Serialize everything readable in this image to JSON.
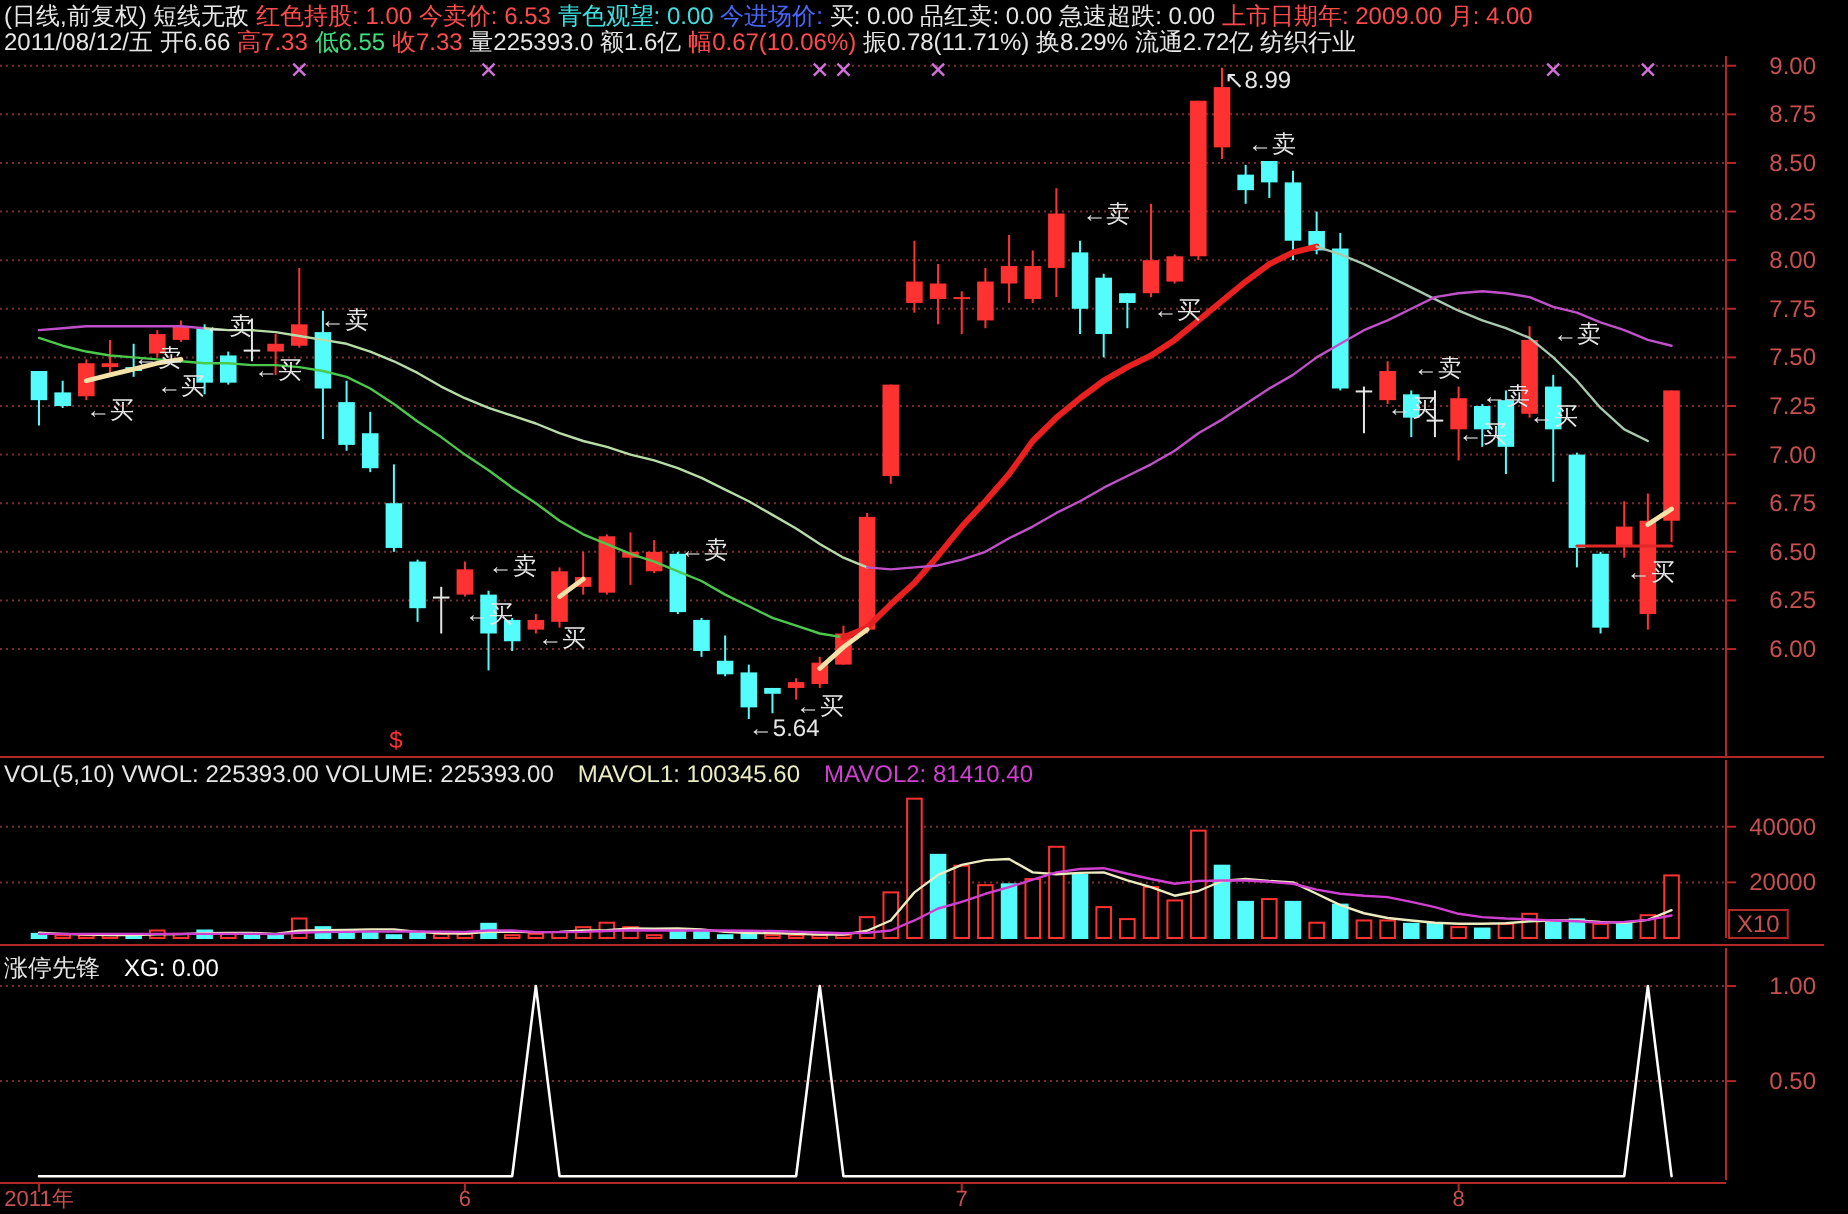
{
  "chart_data": [
    {
      "type": "candlestick",
      "title": "(日线,前复权) 短线无敌 红色持股: 1.00 今卖价: 6.53 青色观望: 0.00 今进场价: 买: 0.00 品红卖: 0.00 急速超跌: 0.00 上市日期年: 2009.00 月: 4.00",
      "subtitle": "2011/08/12/五 开6.66 高7.33 低6.55 收7.33 量225393.0 额1.6亿 幅0.67(10.06%) 振0.78(11.71%) 换8.29% 流通2.72亿 纺织行业",
      "categories": [
        null,
        null,
        null,
        null,
        null,
        null,
        null,
        null,
        null,
        null,
        null,
        null,
        null,
        null,
        null,
        null,
        null,
        null,
        null,
        null,
        null,
        null,
        null,
        null,
        null,
        null,
        null,
        null,
        null,
        null,
        null,
        null,
        null,
        null,
        null,
        null,
        null,
        null,
        null,
        null,
        null,
        null,
        null,
        null,
        null,
        null,
        null,
        null,
        null,
        null,
        null,
        null,
        null,
        null,
        null,
        null,
        null,
        null,
        null,
        null,
        null,
        null,
        null,
        null,
        null,
        null,
        null,
        null,
        null,
        null
      ],
      "tick_labels": "y",
      "ylim": [
        5.45,
        9.05
      ],
      "yticks": [
        {
          "value": 6,
          "label": "6.00"
        },
        {
          "value": 6.25,
          "label": "6.25"
        },
        {
          "value": 6.5,
          "label": "6.50"
        },
        {
          "value": 6.75,
          "label": "6.75"
        },
        {
          "value": 7,
          "label": "7.00"
        },
        {
          "value": 7.25,
          "label": "7.25"
        },
        {
          "value": 7.5,
          "label": "7.50"
        },
        {
          "value": 7.75,
          "label": "7.75"
        },
        {
          "value": 8,
          "label": "8.00"
        },
        {
          "value": 8.25,
          "label": "8.25"
        },
        {
          "value": 8.5,
          "label": "8.50"
        },
        {
          "value": 8.75,
          "label": "8.75"
        },
        {
          "value": 9,
          "label": "9.00"
        }
      ],
      "grid": "y",
      "ohlc": [
        [
          7.43,
          7.43,
          7.15,
          7.28
        ],
        [
          7.32,
          7.38,
          7.24,
          7.25
        ],
        [
          7.3,
          7.49,
          7.28,
          7.47
        ],
        [
          7.45,
          7.59,
          7.41,
          7.47
        ],
        [
          7.45,
          7.57,
          7.4,
          7.43
        ],
        [
          7.52,
          7.64,
          7.5,
          7.62
        ],
        [
          7.59,
          7.69,
          7.58,
          7.66
        ],
        [
          7.65,
          7.67,
          7.31,
          7.37
        ],
        [
          7.51,
          7.53,
          7.36,
          7.37
        ],
        [
          7.53,
          7.7,
          7.48,
          7.54
        ],
        [
          7.53,
          7.62,
          7.41,
          7.57
        ],
        [
          7.56,
          7.96,
          7.55,
          7.67
        ],
        [
          7.63,
          7.74,
          7.08,
          7.34
        ],
        [
          7.27,
          7.38,
          7.02,
          7.05
        ],
        [
          7.11,
          7.22,
          6.91,
          6.93
        ],
        [
          6.75,
          6.95,
          6.5,
          6.52
        ],
        [
          6.45,
          6.46,
          6.14,
          6.21
        ],
        [
          6.26,
          6.32,
          6.08,
          6.27
        ],
        [
          6.28,
          6.45,
          6.27,
          6.41
        ],
        [
          6.28,
          6.3,
          5.89,
          6.08
        ],
        [
          6.15,
          6.16,
          5.99,
          6.04
        ],
        [
          6.1,
          6.18,
          6.08,
          6.15
        ],
        [
          6.14,
          6.42,
          6.11,
          6.4
        ],
        [
          6.32,
          6.5,
          6.28,
          6.37
        ],
        [
          6.29,
          6.59,
          6.28,
          6.58
        ],
        [
          6.47,
          6.6,
          6.33,
          6.5
        ],
        [
          6.4,
          6.56,
          6.39,
          6.5
        ],
        [
          6.49,
          6.5,
          6.18,
          6.19
        ],
        [
          6.15,
          6.16,
          5.96,
          5.99
        ],
        [
          5.94,
          6.07,
          5.86,
          5.87
        ],
        [
          5.88,
          5.92,
          5.64,
          5.7
        ],
        [
          5.8,
          5.8,
          5.67,
          5.77
        ],
        [
          5.8,
          5.85,
          5.74,
          5.83
        ],
        [
          5.82,
          5.96,
          5.8,
          5.93
        ],
        [
          5.92,
          6.12,
          5.92,
          6.08
        ],
        [
          6.1,
          6.7,
          6.08,
          6.68
        ],
        [
          6.89,
          7.36,
          6.85,
          7.36
        ],
        [
          7.78,
          8.1,
          7.73,
          7.89
        ],
        [
          7.8,
          7.98,
          7.67,
          7.88
        ],
        [
          7.8,
          7.84,
          7.62,
          7.81
        ],
        [
          7.69,
          7.96,
          7.65,
          7.89
        ],
        [
          7.88,
          8.13,
          7.78,
          7.97
        ],
        [
          7.8,
          8.05,
          7.78,
          7.97
        ],
        [
          7.96,
          8.37,
          7.81,
          8.24
        ],
        [
          8.04,
          8.1,
          7.62,
          7.75
        ],
        [
          7.91,
          7.93,
          7.5,
          7.62
        ],
        [
          7.83,
          7.83,
          7.65,
          7.78
        ],
        [
          7.83,
          8.29,
          7.81,
          8.0
        ],
        [
          7.89,
          8.03,
          7.88,
          8.02
        ],
        [
          8.02,
          8.82,
          8.0,
          8.82
        ],
        [
          8.58,
          8.99,
          8.52,
          8.89
        ],
        [
          8.44,
          8.49,
          8.29,
          8.36
        ],
        [
          8.51,
          8.51,
          8.32,
          8.4
        ],
        [
          8.4,
          8.46,
          8.0,
          8.1
        ],
        [
          8.15,
          8.25,
          8.03,
          8.05
        ],
        [
          8.06,
          8.14,
          7.33,
          7.34
        ],
        [
          7.33,
          7.35,
          7.11,
          7.33
        ],
        [
          7.28,
          7.48,
          7.26,
          7.43
        ],
        [
          7.31,
          7.33,
          7.09,
          7.19
        ],
        [
          7.17,
          7.33,
          7.09,
          7.18
        ],
        [
          7.13,
          7.35,
          6.97,
          7.29
        ],
        [
          7.25,
          7.26,
          7.04,
          7.13
        ],
        [
          7.28,
          7.33,
          6.9,
          7.04
        ],
        [
          7.21,
          7.66,
          7.19,
          7.59
        ],
        [
          7.35,
          7.41,
          6.86,
          7.13
        ],
        [
          7.0,
          7.01,
          6.42,
          6.52
        ],
        [
          6.49,
          6.5,
          6.08,
          6.11
        ],
        [
          6.53,
          6.76,
          6.47,
          6.63
        ],
        [
          6.18,
          6.8,
          6.1,
          6.66
        ],
        [
          6.66,
          7.33,
          6.55,
          7.33
        ]
      ],
      "colors": [
        "#54fcfc",
        "#54fcfc",
        "#ff3232",
        "#ff3232",
        "#54fcfc",
        "#ff3232",
        "#ff3232",
        "#54fcfc",
        "#54fcfc",
        "#e6e6e6",
        "#ff3232",
        "#ff3232",
        "#54fcfc",
        "#54fcfc",
        "#54fcfc",
        "#54fcfc",
        "#54fcfc",
        "#e6e6e6",
        "#ff3232",
        "#54fcfc",
        "#54fcfc",
        "#ff3232",
        "#ff3232",
        "#ff3232",
        "#ff3232",
        "#ff3232",
        "#ff3232",
        "#54fcfc",
        "#54fcfc",
        "#54fcfc",
        "#54fcfc",
        "#54fcfc",
        "#ff3232",
        "#ff3232",
        "#ff3232",
        "#ff3232",
        "#ff3232",
        "#ff3232",
        "#ff3232",
        "#ff3232",
        "#ff3232",
        "#ff3232",
        "#ff3232",
        "#ff3232",
        "#54fcfc",
        "#54fcfc",
        "#54fcfc",
        "#ff3232",
        "#ff3232",
        "#ff3232",
        "#ff3232",
        "#54fcfc",
        "#54fcfc",
        "#54fcfc",
        "#54fcfc",
        "#54fcfc",
        "#e6e6e6",
        "#ff3232",
        "#54fcfc",
        "#e6e6e6",
        "#ff3232",
        "#54fcfc",
        "#54fcfc",
        "#ff3232",
        "#54fcfc",
        "#54fcfc",
        "#54fcfc",
        "#ff3232",
        "#ff3232",
        "#ff3232"
      ],
      "series": [
        {
          "type": "line",
          "color": "#4cc84c",
          "values": [
            7.6,
            7.56,
            7.53,
            7.51,
            7.5,
            7.49,
            7.48,
            7.47,
            7.47,
            7.46,
            7.46,
            7.45,
            7.43,
            7.4,
            7.34,
            7.26,
            7.17,
            7.09,
            7.0,
            6.92,
            6.83,
            6.75,
            6.66,
            6.59,
            6.54,
            6.49,
            6.45,
            6.4,
            6.35,
            6.28,
            6.22,
            6.16,
            6.12,
            6.08,
            6.06,
            null,
            null,
            null,
            null,
            null,
            null,
            null,
            null,
            null,
            null,
            null,
            null,
            null,
            null,
            null,
            null,
            null,
            null,
            null,
            null,
            null,
            null,
            null,
            null,
            null,
            null,
            null,
            null,
            null,
            null,
            null,
            null,
            null,
            null,
            null
          ]
        },
        {
          "type": "line",
          "color": "#e82020",
          "values": [
            null,
            null,
            null,
            null,
            null,
            null,
            null,
            null,
            null,
            null,
            null,
            null,
            null,
            null,
            null,
            null,
            null,
            null,
            null,
            null,
            null,
            null,
            null,
            null,
            null,
            null,
            null,
            null,
            null,
            null,
            null,
            null,
            null,
            null,
            6.06,
            6.11,
            6.23,
            6.34,
            6.48,
            6.63,
            6.76,
            6.9,
            7.07,
            7.19,
            7.29,
            7.38,
            7.45,
            7.51,
            7.59,
            7.69,
            7.79,
            7.89,
            7.98,
            8.04,
            8.07,
            null,
            null,
            null,
            null,
            null,
            null,
            null,
            null,
            null,
            null,
            null,
            null,
            null,
            null,
            null
          ]
        },
        {
          "type": "line",
          "color": "#a8c8b0",
          "values": [
            null,
            null,
            null,
            null,
            null,
            null,
            null,
            null,
            null,
            null,
            null,
            null,
            null,
            null,
            null,
            null,
            null,
            null,
            null,
            null,
            null,
            null,
            null,
            null,
            null,
            null,
            null,
            null,
            null,
            null,
            null,
            null,
            null,
            null,
            null,
            null,
            null,
            null,
            null,
            null,
            null,
            null,
            null,
            null,
            null,
            null,
            null,
            null,
            null,
            null,
            null,
            null,
            null,
            null,
            8.07,
            8.03,
            7.98,
            7.92,
            7.86,
            7.8,
            7.74,
            7.69,
            7.65,
            7.6,
            7.5,
            7.38,
            7.24,
            7.13,
            7.07,
            null
          ]
        },
        {
          "type": "line",
          "color": "#c050c8",
          "values": [
            7.64,
            7.65,
            7.66,
            7.66,
            7.66,
            7.66,
            7.66,
            7.65,
            null,
            null,
            null,
            null,
            null,
            null,
            null,
            null,
            null,
            null,
            null,
            null,
            null,
            null,
            null,
            null,
            null,
            null,
            null,
            null,
            null,
            null,
            null,
            null,
            null,
            null,
            null,
            null,
            null,
            null,
            null,
            null,
            null,
            null,
            null,
            null,
            null,
            null,
            null,
            null,
            null,
            null,
            null,
            null,
            null,
            null,
            null,
            null,
            null,
            null,
            null,
            null,
            null,
            null,
            null,
            null,
            null,
            null,
            null,
            null,
            null,
            null
          ]
        },
        {
          "type": "line",
          "color": "#b8dca8",
          "values": [
            null,
            null,
            null,
            null,
            null,
            null,
            null,
            7.65,
            7.64,
            7.64,
            7.63,
            7.61,
            7.59,
            7.57,
            7.53,
            7.48,
            7.42,
            7.35,
            7.29,
            7.24,
            7.2,
            7.16,
            7.11,
            7.07,
            7.04,
            7.0,
            6.97,
            6.93,
            6.88,
            6.82,
            6.76,
            6.69,
            6.62,
            6.54,
            6.47,
            6.42,
            null,
            null,
            null,
            null,
            null,
            null,
            null,
            null,
            null,
            null,
            null,
            null,
            null,
            null,
            null,
            null,
            null,
            null,
            null,
            null,
            null,
            null,
            null,
            null,
            null,
            null,
            null,
            null,
            null,
            null,
            null,
            null,
            null,
            null
          ]
        },
        {
          "type": "line",
          "color": "#c050c8",
          "values": [
            null,
            null,
            null,
            null,
            null,
            null,
            null,
            null,
            null,
            null,
            null,
            null,
            null,
            null,
            null,
            null,
            null,
            null,
            null,
            null,
            null,
            null,
            null,
            null,
            null,
            null,
            null,
            null,
            null,
            null,
            null,
            null,
            null,
            null,
            null,
            6.42,
            6.41,
            6.42,
            6.43,
            6.46,
            6.5,
            6.57,
            6.63,
            6.7,
            6.76,
            6.83,
            6.89,
            6.95,
            7.02,
            7.11,
            7.18,
            7.26,
            7.34,
            7.41,
            7.5,
            7.57,
            7.64,
            7.69,
            7.75,
            7.81,
            7.83,
            7.84,
            7.83,
            7.81,
            7.76,
            7.73,
            7.68,
            7.64,
            7.59,
            7.56
          ]
        },
        {
          "type": "line",
          "color": "#f2e2a8",
          "values": [
            null,
            null,
            7.38,
            7.41,
            7.44,
            7.47,
            7.49,
            null,
            null,
            null,
            null,
            null,
            null,
            null,
            null,
            null,
            null,
            null,
            null,
            null,
            null,
            null,
            6.27,
            6.36,
            null,
            null,
            null,
            null,
            null,
            null,
            null,
            null,
            null,
            5.9,
            6.01,
            6.1,
            null,
            null,
            null,
            null,
            null,
            null,
            null,
            null,
            null,
            null,
            null,
            null,
            null,
            null,
            null,
            null,
            null,
            null,
            null,
            null,
            null,
            null,
            null,
            null,
            null,
            null,
            null,
            null,
            null,
            null,
            null,
            null,
            6.64,
            6.72
          ]
        },
        {
          "type": "line",
          "color": "#e02828",
          "values": [
            null,
            null,
            null,
            null,
            null,
            null,
            null,
            null,
            null,
            null,
            null,
            null,
            null,
            null,
            null,
            null,
            null,
            null,
            null,
            null,
            null,
            null,
            null,
            null,
            null,
            null,
            null,
            null,
            null,
            null,
            null,
            null,
            null,
            null,
            null,
            null,
            null,
            null,
            null,
            null,
            null,
            null,
            null,
            null,
            null,
            null,
            null,
            null,
            null,
            null,
            null,
            null,
            null,
            null,
            null,
            null,
            null,
            null,
            null,
            null,
            null,
            null,
            null,
            null,
            null,
            6.53,
            6.53,
            6.53,
            6.53,
            6.53
          ]
        },
        {
          "type": "scatter",
          "marker": "cross",
          "color": "#d070d8",
          "values": [
            null,
            null,
            null,
            null,
            null,
            null,
            null,
            null,
            null,
            null,
            null,
            8.98,
            null,
            null,
            null,
            null,
            null,
            null,
            null,
            8.98,
            null,
            null,
            null,
            null,
            null,
            null,
            null,
            null,
            null,
            null,
            null,
            null,
            null,
            8.98,
            8.98,
            null,
            null,
            null,
            8.98,
            null,
            null,
            null,
            null,
            null,
            null,
            null,
            null,
            null,
            null,
            null,
            null,
            null,
            null,
            null,
            null,
            null,
            null,
            null,
            null,
            null,
            null,
            null,
            null,
            null,
            8.98,
            null,
            null,
            null,
            8.98,
            null
          ]
        }
      ],
      "annotations": [
        "←卖",
        "←卖",
        "←买",
        "←买",
        "←买",
        "←卖",
        "←卖",
        "←买",
        "←买",
        "←卖",
        "←买",
        "←5.64",
        "$",
        "↖8.99",
        "←卖",
        "←卖",
        "←买",
        "←卖",
        "←买",
        "←买",
        "←卖",
        "←买",
        "←卖",
        "←买"
      ]
    },
    {
      "type": "bar",
      "title": "VOL(5,10) VWOL: 225393.00 VOLUME: 225393.00",
      "categories": [
        null,
        null,
        null,
        null,
        null,
        null,
        null,
        null,
        null,
        null,
        null,
        null,
        null,
        null,
        null,
        null,
        null,
        null,
        null,
        null,
        null,
        null,
        null,
        null,
        null,
        null,
        null,
        null,
        null,
        null,
        null,
        null,
        null,
        null,
        null,
        null,
        null,
        null,
        null,
        null,
        null,
        null,
        null,
        null,
        null,
        null,
        null,
        null,
        null,
        null,
        null,
        null,
        null,
        null,
        null,
        null,
        null,
        null,
        null,
        null,
        null,
        null,
        null,
        null,
        null,
        null,
        null,
        null,
        null,
        null
      ],
      "tick_labels": "y",
      "ylim": [
        0,
        64000
      ],
      "yticks": [
        20000,
        40000
      ],
      "grid": "y",
      "legend": "top left",
      "series": [
        {
          "values": [
            1500,
            1000,
            1000,
            1000,
            1000,
            2700,
            1500,
            2700,
            1500,
            1000,
            1000,
            7000,
            3900,
            1900,
            1900,
            1000,
            2200,
            1500,
            1500,
            5100,
            1000,
            1500,
            2200,
            3900,
            5500,
            3900,
            1000,
            2700,
            2700,
            1000,
            1900,
            1000,
            1000,
            1000,
            1000,
            7500,
            16400,
            50100,
            29900,
            26000,
            19000,
            19300,
            21200,
            32800,
            22700,
            11100,
            6800,
            18300,
            13500,
            38600,
            26000,
            13000,
            14000,
            13000,
            5500,
            12000,
            6300,
            6300,
            5100,
            5100,
            3900,
            3400,
            5100,
            8700,
            5500,
            6700,
            5100,
            5100,
            8200,
            22500
          ],
          "colors": [
            "#54fcfc",
            "#ff3232",
            "#ff3232",
            "#ff3232",
            "#54fcfc",
            "#ff3232",
            "#ff3232",
            "#54fcfc",
            "#ff3232",
            "#54fcfc",
            "#54fcfc",
            "#ff3232",
            "#54fcfc",
            "#54fcfc",
            "#54fcfc",
            "#54fcfc",
            "#54fcfc",
            "#ff3232",
            "#ff3232",
            "#54fcfc",
            "#ff3232",
            "#ff3232",
            "#ff3232",
            "#ff3232",
            "#ff3232",
            "#ff3232",
            "#ff3232",
            "#54fcfc",
            "#54fcfc",
            "#54fcfc",
            "#54fcfc",
            "#ff3232",
            "#ff3232",
            "#ff3232",
            "#ff3232",
            "#ff3232",
            "#ff3232",
            "#ff3232",
            "#54fcfc",
            "#ff3232",
            "#ff3232",
            "#54fcfc",
            "#ff3232",
            "#ff3232",
            "#54fcfc",
            "#ff3232",
            "#ff3232",
            "#ff3232",
            "#ff3232",
            "#ff3232",
            "#54fcfc",
            "#54fcfc",
            "#ff3232",
            "#54fcfc",
            "#ff3232",
            "#54fcfc",
            "#ff3232",
            "#ff3232",
            "#54fcfc",
            "#54fcfc",
            "#ff3232",
            "#54fcfc",
            "#ff3232",
            "#ff3232",
            "#54fcfc",
            "#54fcfc",
            "#ff3232",
            "#54fcfc",
            "#ff3232",
            "#ff3232"
          ]
        },
        {
          "type": "line",
          "name": "MAVOL1: 100345.60",
          "color": "#ececc0",
          "values": [
            1900,
            1500,
            1200,
            1100,
            1100,
            1300,
            1400,
            1700,
            1800,
            1800,
            1500,
            2600,
            2800,
            2900,
            3100,
            3100,
            2200,
            1700,
            1600,
            2200,
            2200,
            2100,
            2200,
            2700,
            2800,
            3400,
            3300,
            3400,
            3100,
            2200,
            1800,
            1800,
            1500,
            1200,
            1200,
            2600,
            6300,
            16400,
            22700,
            26300,
            28000,
            28400,
            23600,
            22900,
            23400,
            23600,
            20700,
            18300,
            15200,
            16900,
            20500,
            21200,
            20500,
            20000,
            15900,
            11800,
            8900,
            7200,
            6300,
            5500,
            5100,
            5100,
            5300,
            6000,
            6300,
            6300,
            5800,
            5500,
            6500,
            10000
          ]
        },
        {
          "type": "line",
          "name": "MAVOL2: 81410.40",
          "color": "#d040d0",
          "values": [
            1500,
            1500,
            1500,
            1500,
            1500,
            1500,
            1500,
            1500,
            1500,
            1500,
            1400,
            1900,
            2100,
            2200,
            2300,
            2300,
            2400,
            2300,
            2200,
            2700,
            2700,
            2100,
            2100,
            2200,
            2500,
            2800,
            2700,
            2700,
            2700,
            2700,
            2600,
            2500,
            2300,
            2000,
            1700,
            1900,
            2700,
            6300,
            10600,
            13000,
            15900,
            18300,
            21000,
            23600,
            24800,
            25100,
            23100,
            21200,
            19500,
            20500,
            20700,
            20700,
            20200,
            19500,
            17400,
            15900,
            15200,
            14700,
            13000,
            11100,
            8700,
            7500,
            7000,
            6700,
            6300,
            6000,
            5500,
            5800,
            6500,
            8100
          ]
        }
      ],
      "annotations": [
        "X10"
      ]
    },
    {
      "type": "line",
      "title": "涨停先锋",
      "categories": [
        "2011年",
        null,
        null,
        null,
        null,
        null,
        null,
        null,
        null,
        null,
        null,
        null,
        null,
        null,
        null,
        null,
        null,
        null,
        "6",
        null,
        null,
        null,
        null,
        null,
        null,
        null,
        null,
        null,
        null,
        null,
        null,
        null,
        null,
        null,
        null,
        null,
        null,
        null,
        null,
        "7",
        null,
        null,
        null,
        null,
        null,
        null,
        null,
        null,
        null,
        null,
        null,
        null,
        null,
        null,
        null,
        null,
        null,
        null,
        null,
        null,
        "8",
        null,
        null,
        null,
        null,
        null,
        null,
        null,
        null,
        null
      ],
      "ylim": [
        -0.02,
        1.2
      ],
      "yticks": [
        {
          "value": 0.5,
          "label": "0.50"
        },
        {
          "value": 1,
          "label": "1.00"
        }
      ],
      "grid": "y",
      "legend": "top left",
      "series": [
        {
          "name": "XG: 0.00",
          "color": "#ffffff",
          "values": [
            0,
            0,
            0,
            0,
            0,
            0,
            0,
            0,
            0,
            0,
            0,
            0,
            0,
            0,
            0,
            0,
            0,
            0,
            0,
            0,
            0,
            1,
            0,
            0,
            0,
            0,
            0,
            0,
            0,
            0,
            0,
            0,
            0,
            1,
            0,
            0,
            0,
            0,
            0,
            0,
            0,
            0,
            0,
            0,
            0,
            0,
            0,
            0,
            0,
            0,
            0,
            0,
            0,
            0,
            0,
            0,
            0,
            0,
            0,
            0,
            0,
            0,
            0,
            0,
            0,
            0,
            0,
            0,
            1,
            0
          ]
        }
      ]
    }
  ]
}
